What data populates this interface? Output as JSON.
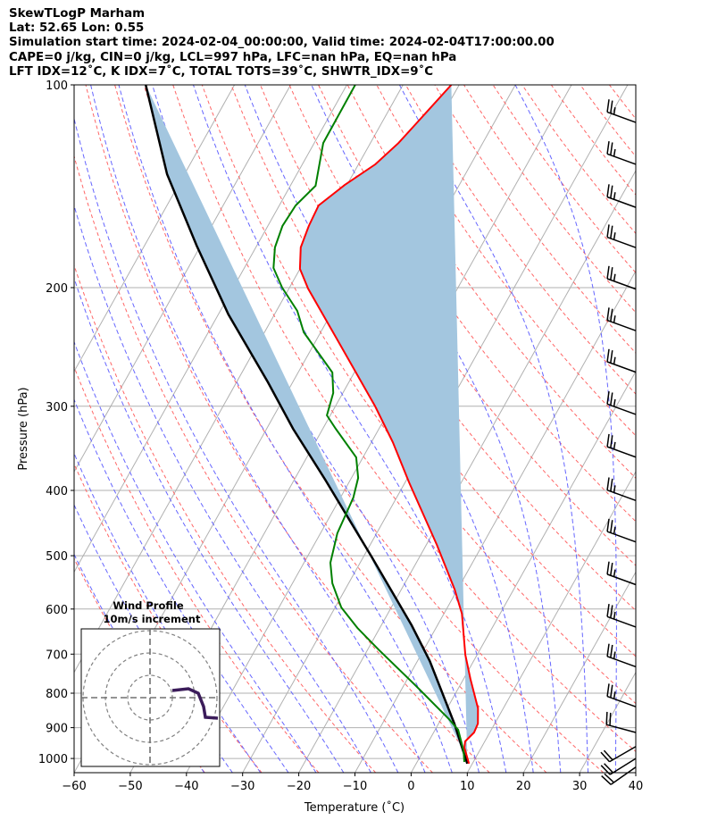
{
  "title_lines": [
    "SkewTLogP Marham",
    "Lat: 52.65   Lon: 0.55",
    "Simulation start time: 2024-02-04_00:00:00, Valid time: 2024-02-04T17:00:00.00",
    "CAPE=0 j/kg, CIN=0 j/kg, LCL=997 hPa, LFC=nan hPa, EQ=nan hPa",
    "LFT IDX=12˚C, K IDX=7˚C, TOTAL TOTS=39˚C, SHWTR_IDX=9˚C"
  ],
  "chart_data": {
    "type": "line",
    "subtype": "skewt-logp",
    "xlabel": "Temperature (˚C)",
    "ylabel": "Pressure (hPa)",
    "xlim": [
      -60,
      40
    ],
    "ylim": [
      1050,
      100
    ],
    "x_ticks": [
      -60,
      -50,
      -40,
      -30,
      -20,
      -10,
      0,
      10,
      20,
      30,
      40
    ],
    "x_tick_labels": [
      "−60",
      "−50",
      "−40",
      "−30",
      "−20",
      "−10",
      "0",
      "10",
      "20",
      "30",
      "40"
    ],
    "y_ticks": [
      100,
      200,
      300,
      400,
      500,
      600,
      700,
      800,
      900,
      1000
    ],
    "y_tick_labels": [
      "100",
      "200",
      "300",
      "400",
      "500",
      "600",
      "700",
      "800",
      "900",
      "1000"
    ],
    "colors": {
      "temperature": "#ff0000",
      "dewpoint": "#008000",
      "parcel": "#000000",
      "fill": "#a3c6df",
      "isotherm": "#b0b0b0",
      "dry_adiabat": "#ff6666",
      "moist_adiabat": "#6666ff",
      "hodograph": "#3b1c5a"
    },
    "temperature": {
      "p": [
        100,
        113,
        122,
        131.2,
        140.8,
        151,
        162,
        174.3,
        187.6,
        200.6,
        244.7,
        300.2,
        339.2,
        389.1,
        482,
        561.3,
        609.6,
        701.6,
        761.8,
        842.6,
        887.6,
        915,
        943.4,
        963.7,
        1018
      ],
      "t": [
        -61.4,
        -63.6,
        -65.0,
        -67.0,
        -70.4,
        -73.0,
        -72.7,
        -72.0,
        -70.0,
        -66.6,
        -54.9,
        -42.9,
        -36.2,
        -29.3,
        -18.1,
        -10.5,
        -6.8,
        -2.1,
        1.2,
        5.5,
        7.0,
        7.2,
        6.5,
        7.0,
        9.4
      ]
    },
    "dewpoint": {
      "p": [
        100,
        122,
        141.2,
        151,
        162,
        174.3,
        187,
        200,
        216.5,
        233,
        267.3,
        286.7,
        309.5,
        324,
        357.3,
        383.3,
        409.9,
        463,
        512.2,
        549.5,
        596.7,
        640,
        688.9,
        778.2,
        874,
        906.6,
        972.6,
        1012
      ],
      "t": [
        -78.5,
        -78.4,
        -75.5,
        -77.1,
        -77.4,
        -76.6,
        -74.8,
        -71.3,
        -66.3,
        -63.0,
        -53.9,
        -51.7,
        -50.6,
        -47.7,
        -41.2,
        -38.8,
        -37.7,
        -37.0,
        -35.3,
        -32.9,
        -28.9,
        -24.0,
        -18.1,
        -8.0,
        1.4,
        4.1,
        7.1,
        8.4
      ]
    },
    "parcel": {
      "p": [
        1018,
        887.6,
        716.7,
        634.3,
        501.4,
        385.6,
        324,
        276.4,
        219.2,
        173.3,
        135.7,
        100
      ],
      "t": [
        9.1,
        2.8,
        -7.8,
        -14.6,
        -28.6,
        -44.5,
        -55.3,
        -64.4,
        -78.2,
        -90.7,
        -103.1,
        -115.8
      ]
    },
    "isotherms": [
      -100,
      -90,
      -80,
      -70,
      -60,
      -50,
      -40,
      -30,
      -20,
      -10,
      0,
      10,
      20,
      30,
      40
    ],
    "dry_adiabats_theta_c": [
      -40,
      -30,
      -20,
      -10,
      0,
      10,
      20,
      30,
      40,
      50,
      60,
      70,
      80,
      90,
      100,
      110,
      120,
      130,
      140,
      150,
      160,
      170,
      180,
      190,
      200
    ],
    "moist_adiabats_t0_c": [
      -40,
      -35,
      -30,
      -25,
      -20,
      -15,
      -10,
      -5,
      0,
      5,
      10,
      15,
      20,
      25,
      30,
      35,
      40,
      45
    ],
    "wind_barbs": [
      {
        "p": 113.7,
        "dir": 290,
        "kt": 25
      },
      {
        "p": 131.2,
        "dir": 290,
        "kt": 25
      },
      {
        "p": 152,
        "dir": 290,
        "kt": 25
      },
      {
        "p": 174.4,
        "dir": 290,
        "kt": 25
      },
      {
        "p": 201,
        "dir": 290,
        "kt": 25
      },
      {
        "p": 231.7,
        "dir": 290,
        "kt": 25
      },
      {
        "p": 267,
        "dir": 290,
        "kt": 25
      },
      {
        "p": 308.5,
        "dir": 290,
        "kt": 25
      },
      {
        "p": 357,
        "dir": 290,
        "kt": 25
      },
      {
        "p": 414,
        "dir": 290,
        "kt": 25
      },
      {
        "p": 477,
        "dir": 290,
        "kt": 25
      },
      {
        "p": 552,
        "dir": 290,
        "kt": 25
      },
      {
        "p": 638,
        "dir": 290,
        "kt": 25
      },
      {
        "p": 731,
        "dir": 290,
        "kt": 25
      },
      {
        "p": 838,
        "dir": 290,
        "kt": 25
      },
      {
        "p": 915,
        "dir": 285,
        "kt": 20
      },
      {
        "p": 960,
        "dir": 240,
        "kt": 20
      },
      {
        "p": 1000,
        "dir": 238,
        "kt": 20
      },
      {
        "p": 1030,
        "dir": 235,
        "kt": 20
      }
    ],
    "hodograph": {
      "title": "Wind Profile",
      "subtitle": "10m/s increment",
      "rings_ms": [
        10,
        20,
        30
      ],
      "u": [
        10,
        17.2,
        21.6,
        24,
        24.8,
        30.4
      ],
      "v": [
        3.2,
        4,
        2,
        -4,
        -8.8,
        -9.2
      ]
    }
  }
}
